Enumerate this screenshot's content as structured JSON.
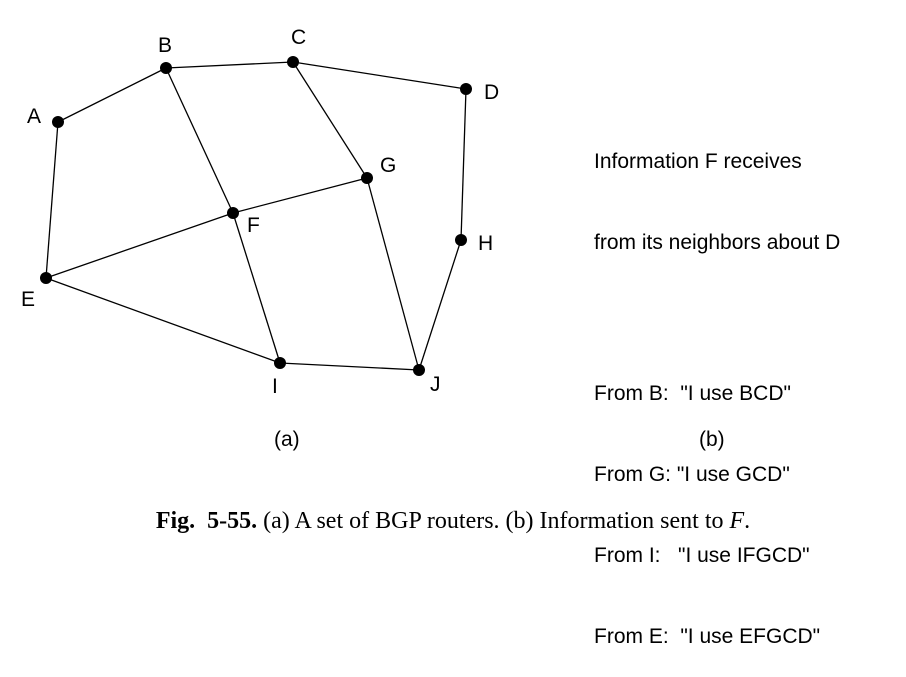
{
  "diagram": {
    "nodes": [
      {
        "id": "A",
        "label": "A"
      },
      {
        "id": "B",
        "label": "B"
      },
      {
        "id": "C",
        "label": "C"
      },
      {
        "id": "D",
        "label": "D"
      },
      {
        "id": "E",
        "label": "E"
      },
      {
        "id": "F",
        "label": "F"
      },
      {
        "id": "G",
        "label": "G"
      },
      {
        "id": "H",
        "label": "H"
      },
      {
        "id": "I",
        "label": "I"
      },
      {
        "id": "J",
        "label": "J"
      }
    ],
    "edges": [
      [
        "A",
        "B"
      ],
      [
        "B",
        "C"
      ],
      [
        "C",
        "D"
      ],
      [
        "A",
        "E"
      ],
      [
        "B",
        "F"
      ],
      [
        "C",
        "G"
      ],
      [
        "D",
        "H"
      ],
      [
        "E",
        "F"
      ],
      [
        "F",
        "G"
      ],
      [
        "E",
        "I"
      ],
      [
        "F",
        "I"
      ],
      [
        "G",
        "J"
      ],
      [
        "H",
        "J"
      ],
      [
        "I",
        "J"
      ]
    ]
  },
  "info": {
    "heading_line1": "Information F receives",
    "heading_line2": "from its neighbors about D",
    "lines": [
      "From B:  \"I use BCD\"",
      "From G: \"I use GCD\"",
      "From I:   \"I use IFGCD\"",
      "From E:  \"I use EFGCD\""
    ]
  },
  "part_labels": {
    "a": "(a)",
    "b": "(b)"
  },
  "caption": {
    "fig_number": "Fig.  5-55.",
    "text_before": " (a) A set of BGP routers. (b) Information sent to ",
    "italic": "F",
    "text_after": "."
  }
}
